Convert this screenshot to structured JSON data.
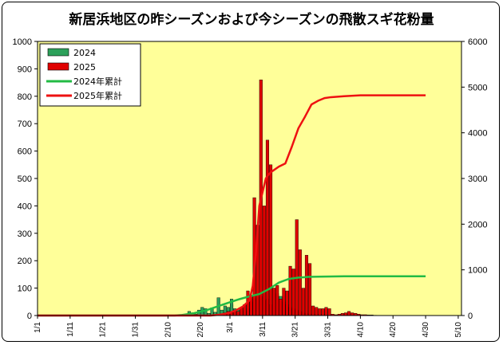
{
  "chart_data": {
    "type": "bar+line",
    "title": "新居浜地区の昨シーズンおよび今シーズンの飛散スギ花粉量",
    "xlabel": "",
    "ylabel": "",
    "y2label": "",
    "ylim": [
      0,
      1000
    ],
    "y2lim": [
      0,
      6000
    ],
    "yticks": [
      "0",
      "100",
      "200",
      "300",
      "400",
      "500",
      "600",
      "700",
      "800",
      "900",
      "1000"
    ],
    "y2ticks": [
      "0",
      "1000",
      "2000",
      "3000",
      "4000",
      "5000",
      "6000"
    ],
    "x_start": "1/1",
    "x_tick_labels": [
      "1/1",
      "1/11",
      "1/21",
      "1/31",
      "2/10",
      "2/20",
      "3/1",
      "3/11",
      "3/21",
      "3/31",
      "4/10",
      "4/20",
      "4/30",
      "5/10"
    ],
    "legend_position": "top-left",
    "grid": false,
    "colors": {
      "bar2024": "#2ca05a",
      "bar2025": "#e00000",
      "line2024": "#22bb44",
      "line2025": "#ee1111",
      "plot_bg": "#ffff99"
    },
    "series": [
      {
        "name": "2024",
        "type": "bar",
        "axis": "left",
        "x": [
          "2/15",
          "2/16",
          "2/17",
          "2/18",
          "2/19",
          "2/20",
          "2/21",
          "2/22",
          "2/23",
          "2/24",
          "2/25",
          "2/26",
          "2/27",
          "2/28",
          "2/29",
          "3/1",
          "3/2",
          "3/3",
          "3/4",
          "3/5",
          "3/6",
          "3/7",
          "3/8",
          "3/9",
          "3/10",
          "3/11",
          "3/12",
          "3/13",
          "3/14",
          "3/15",
          "3/16",
          "3/17",
          "3/18",
          "3/19",
          "3/20",
          "3/21",
          "3/22",
          "3/23",
          "3/24",
          "3/25",
          "3/26",
          "3/27",
          "3/28",
          "3/29",
          "3/30",
          "3/31",
          "4/1",
          "4/2",
          "4/3",
          "4/4",
          "4/5",
          "4/6",
          "4/7",
          "4/8",
          "4/9",
          "4/10"
        ],
        "values": [
          2,
          15,
          10,
          5,
          20,
          30,
          25,
          8,
          28,
          12,
          65,
          20,
          35,
          30,
          40,
          60,
          25,
          20,
          22,
          15,
          25,
          50,
          60,
          65,
          70,
          55,
          60,
          40,
          100,
          80,
          70,
          50,
          40,
          30,
          25,
          20,
          15,
          10,
          8,
          6,
          5,
          5,
          4,
          3,
          3,
          2,
          2,
          2,
          1,
          1,
          1,
          1,
          1,
          1,
          1,
          1
        ]
      },
      {
        "name": "2025",
        "type": "bar",
        "axis": "left",
        "x": [
          "2/25",
          "2/26",
          "2/27",
          "2/28",
          "3/1",
          "3/2",
          "3/3",
          "3/4",
          "3/5",
          "3/6",
          "3/7",
          "3/8",
          "3/9",
          "3/10",
          "3/11",
          "3/12",
          "3/13",
          "3/14",
          "3/15",
          "3/16",
          "3/17",
          "3/18",
          "3/19",
          "3/20",
          "3/21",
          "3/22",
          "3/23",
          "3/24",
          "3/25",
          "3/26",
          "3/27",
          "3/28",
          "3/29",
          "3/30",
          "3/31",
          "4/1",
          "4/2",
          "4/3",
          "4/4",
          "4/5",
          "4/6",
          "4/7",
          "4/8",
          "4/9",
          "4/10",
          "4/11",
          "4/12",
          "4/13",
          "4/14"
        ],
        "values": [
          5,
          5,
          10,
          15,
          10,
          20,
          15,
          30,
          40,
          90,
          70,
          430,
          330,
          860,
          400,
          640,
          550,
          100,
          110,
          60,
          100,
          90,
          180,
          170,
          350,
          240,
          100,
          220,
          190,
          35,
          30,
          25,
          25,
          30,
          25,
          5,
          3,
          5,
          8,
          10,
          15,
          10,
          8,
          5,
          3,
          3,
          2,
          2,
          1
        ]
      },
      {
        "name": "2024年累計",
        "type": "line",
        "axis": "right",
        "x": [
          "2/12",
          "2/14",
          "2/18",
          "2/22",
          "2/26",
          "3/1",
          "3/4",
          "3/7",
          "3/10",
          "3/13",
          "3/16",
          "3/19",
          "3/22",
          "3/25",
          "3/28",
          "4/1",
          "4/5",
          "4/10",
          "4/20",
          "4/30"
        ],
        "values": [
          0,
          10,
          50,
          120,
          220,
          290,
          360,
          420,
          470,
          580,
          720,
          800,
          830,
          845,
          850,
          855,
          858,
          860,
          860,
          860
        ]
      },
      {
        "name": "2025年累計",
        "type": "line",
        "axis": "right",
        "x": [
          "2/23",
          "2/26",
          "3/1",
          "3/3",
          "3/5",
          "3/7",
          "3/8",
          "3/9",
          "3/10",
          "3/11",
          "3/12",
          "3/13",
          "3/14",
          "3/16",
          "3/18",
          "3/20",
          "3/22",
          "3/24",
          "3/26",
          "3/28",
          "3/30",
          "4/1",
          "4/5",
          "4/10",
          "4/20",
          "4/30"
        ],
        "values": [
          0,
          20,
          60,
          120,
          200,
          330,
          650,
          1400,
          2400,
          2700,
          3000,
          3100,
          3160,
          3260,
          3330,
          3700,
          4100,
          4350,
          4620,
          4700,
          4760,
          4780,
          4800,
          4820,
          4820,
          4820
        ]
      }
    ]
  }
}
